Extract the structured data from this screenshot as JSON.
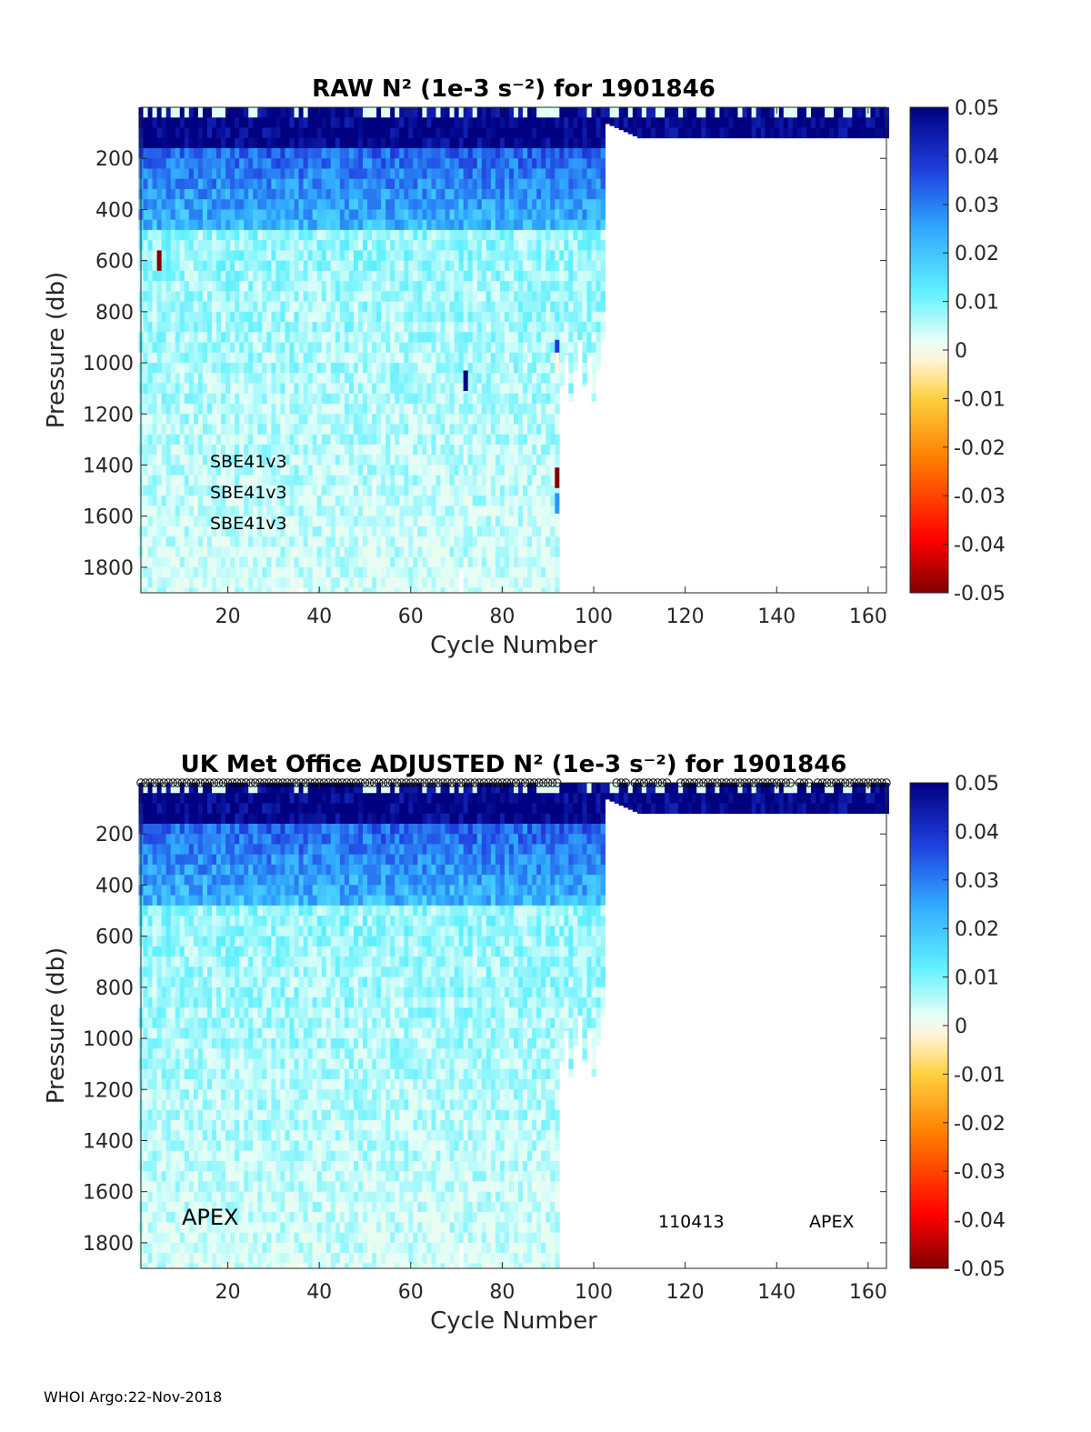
{
  "footer": "WHOI Argo:22-Nov-2018",
  "colormap": [
    "#800000",
    "#ff0000",
    "#ff8000",
    "#ffd040",
    "#fff8e0",
    "#e0fff8",
    "#60f0ff",
    "#30a8ff",
    "#2040e0",
    "#000080"
  ],
  "chart_data": [
    {
      "type": "heatmap",
      "title": "RAW N² (1e-3 s⁻²) for 1901846",
      "xlabel": "Cycle Number",
      "ylabel": "Pressure (db)",
      "xlim": [
        1,
        164
      ],
      "ylim": [
        1900,
        0
      ],
      "xticks": [
        20,
        40,
        60,
        80,
        100,
        120,
        140,
        160
      ],
      "yticks": [
        200,
        400,
        600,
        800,
        1000,
        1200,
        1400,
        1600,
        1800
      ],
      "colorbar": {
        "ticks": [
          0.05,
          0.04,
          0.03,
          0.02,
          0.01,
          0,
          -0.01,
          -0.02,
          -0.03,
          -0.04,
          -0.05
        ],
        "clim": [
          -0.05,
          0.05
        ]
      },
      "annotations": [
        "SBE41v3",
        "SBE41v3",
        "SBE41v3"
      ],
      "profile_depth": {
        "cycles_1_to_92": 1900,
        "cycles_93_to_102": 1150,
        "cycles_103_to_164": 120
      },
      "typical_values": [
        {
          "depth_range": [
            0,
            150
          ],
          "value": 0.05
        },
        {
          "depth_range": [
            150,
            450
          ],
          "value": 0.035
        },
        {
          "depth_range": [
            450,
            1900
          ],
          "value": 0.012
        }
      ],
      "outliers": [
        {
          "cycle": 5,
          "depth": 600,
          "value": -0.05
        },
        {
          "cycle": 92,
          "depth": 950,
          "value": 0.04
        },
        {
          "cycle": 92,
          "depth": 1000,
          "value": -0.005
        },
        {
          "cycle": 72,
          "depth": 1070,
          "value": 0.05
        },
        {
          "cycle": 92,
          "depth": 1450,
          "value": -0.05
        },
        {
          "cycle": 92,
          "depth": 1550,
          "value": 0.03
        }
      ]
    },
    {
      "type": "heatmap",
      "title": "UK Met Office  ADJUSTED N² (1e-3 s⁻²) for 1901846",
      "xlabel": "Cycle Number",
      "ylabel": "Pressure (db)",
      "xlim": [
        1,
        164
      ],
      "ylim": [
        1900,
        0
      ],
      "xticks": [
        20,
        40,
        60,
        80,
        100,
        120,
        140,
        160
      ],
      "yticks": [
        200,
        400,
        600,
        800,
        1000,
        1200,
        1400,
        1600,
        1800
      ],
      "colorbar": {
        "ticks": [
          0.05,
          0.04,
          0.03,
          0.02,
          0.01,
          0,
          -0.01,
          -0.02,
          -0.03,
          -0.04,
          -0.05
        ],
        "clim": [
          -0.05,
          0.05
        ]
      },
      "annotations": [
        "APEX",
        "110413",
        "APEX"
      ],
      "profile_depth": {
        "cycles_1_to_92": 1900,
        "cycles_93_to_102": 1150,
        "cycles_103_to_164": 120
      },
      "typical_values": [
        {
          "depth_range": [
            0,
            150
          ],
          "value": 0.05
        },
        {
          "depth_range": [
            150,
            450
          ],
          "value": 0.035
        },
        {
          "depth_range": [
            450,
            1900
          ],
          "value": 0.012
        }
      ],
      "surface_markers": "circles at each cycle"
    }
  ]
}
